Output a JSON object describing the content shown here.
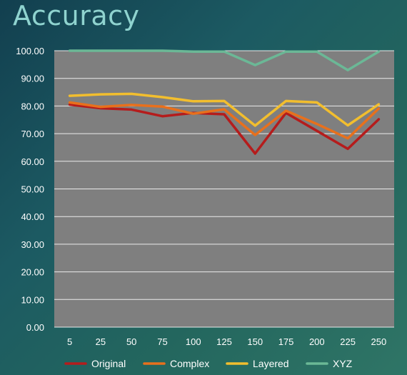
{
  "slide": {
    "title": "Accuracy"
  },
  "colors": {
    "background_top": "#123f4f",
    "background_bottom": "#2f7566",
    "title": "#8fd3cf",
    "plot_area": "#7f7f7f",
    "gridline": "#ffffff",
    "text": "#ffffff"
  },
  "chart_data": {
    "type": "line",
    "title": "Accuracy",
    "xlabel": "",
    "ylabel": "",
    "categories": [
      "5",
      "25",
      "50",
      "75",
      "100",
      "125",
      "150",
      "175",
      "200",
      "225",
      "250"
    ],
    "ylim": [
      0,
      100
    ],
    "ytick_step": 10,
    "ytick_labels": [
      "0.00",
      "10.00",
      "20.00",
      "30.00",
      "40.00",
      "50.00",
      "60.00",
      "70.00",
      "80.00",
      "90.00",
      "100.00"
    ],
    "grid": true,
    "legend_position": "bottom",
    "series": [
      {
        "name": "Original",
        "color": "#b51c1c",
        "values": [
          80.5,
          79.2,
          78.7,
          76.3,
          77.5,
          77.0,
          62.8,
          77.5,
          71.0,
          64.5,
          75.2
        ]
      },
      {
        "name": "Complex",
        "color": "#e8701c",
        "values": [
          81.3,
          79.7,
          80.4,
          79.8,
          77.2,
          78.8,
          69.5,
          78.3,
          73.5,
          68.3,
          79.1
        ]
      },
      {
        "name": "Layered",
        "color": "#f2be2e",
        "values": [
          83.7,
          84.2,
          84.4,
          83.2,
          81.7,
          81.8,
          72.9,
          81.8,
          81.3,
          73.0,
          80.6
        ]
      },
      {
        "name": "XYZ",
        "color": "#6bb896",
        "values": [
          100.0,
          100.0,
          100.0,
          100.0,
          99.7,
          99.7,
          94.8,
          99.7,
          99.7,
          93.0,
          99.7
        ]
      }
    ]
  }
}
